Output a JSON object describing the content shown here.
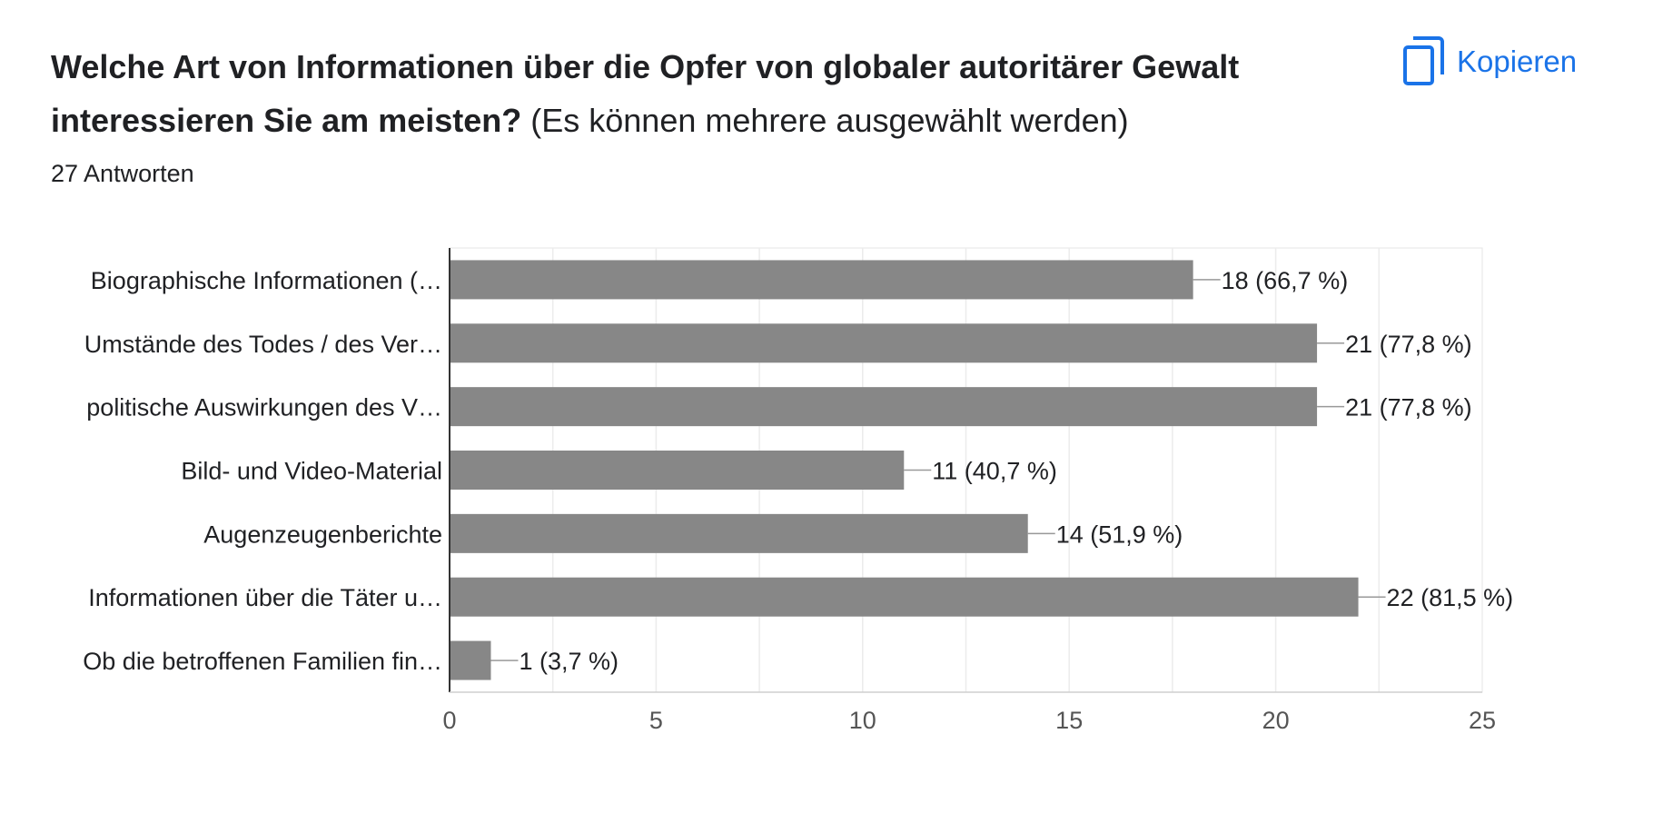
{
  "question": {
    "title_bold": "Welche Art von Informationen über die Opfer von globaler autoritärer Gewalt interessieren Sie am meisten?",
    "title_note": "(Es können mehrere ausgewählt werden)",
    "responses": "27 Antworten"
  },
  "actions": {
    "copy_label": "Kopieren",
    "copy_icon": "copy-icon"
  },
  "colors": {
    "bar": "#878787",
    "accent": "#1a73e8",
    "grid": "#e6e6e6",
    "text": "#202124"
  },
  "chart_data": {
    "type": "bar",
    "orientation": "horizontal",
    "categories": [
      "Biographische Informationen (…",
      "Umstände des Todes / des Ver…",
      "politische Auswirkungen des V…",
      "Bild- und Video-Material",
      "Augenzeugenberichte",
      "Informationen über die Täter u…",
      "Ob die betroffenen Familien fin…"
    ],
    "values": [
      18,
      21,
      21,
      11,
      14,
      22,
      1
    ],
    "data_labels": [
      "18 (66,7 %)",
      "21 (77,8 %)",
      "21 (77,8 %)",
      "11 (40,7 %)",
      "14 (51,9 %)",
      "22 (81,5 %)",
      "1 (3,7 %)"
    ],
    "xlim": [
      0,
      25
    ],
    "xticks": [
      0,
      5,
      10,
      15,
      20,
      25
    ],
    "grid": true,
    "title": "",
    "xlabel": "",
    "ylabel": ""
  }
}
